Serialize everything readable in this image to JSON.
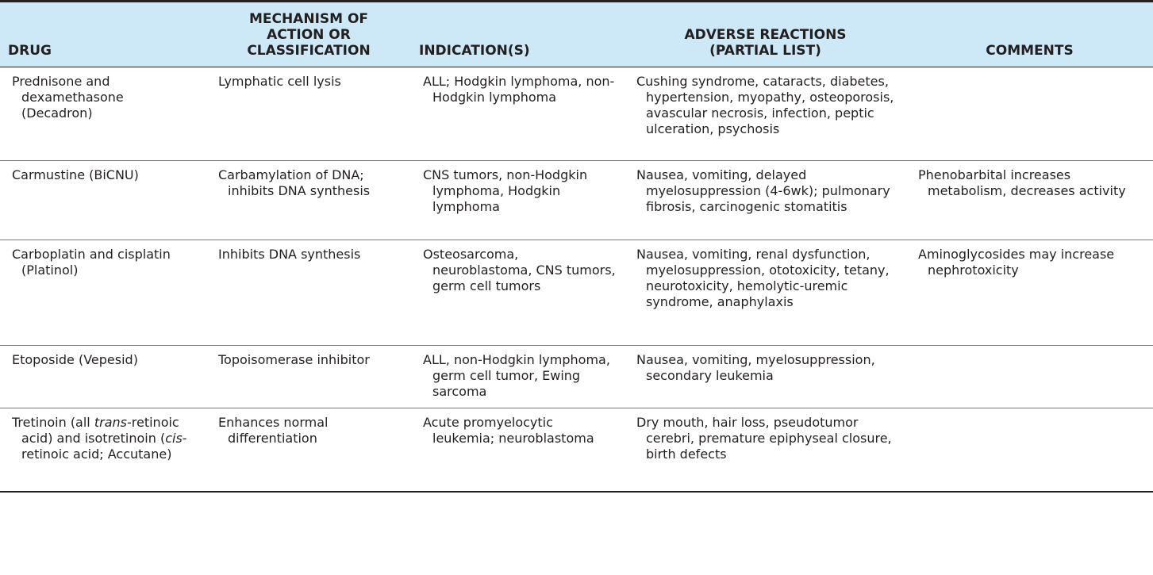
{
  "table": {
    "headers": {
      "drug": "DRUG",
      "mechanism_line1": "MECHANISM OF",
      "mechanism_line2": "ACTION OR",
      "mechanism_line3": "CLASSIFICATION",
      "indications": "INDICATION(S)",
      "adverse_line1": "ADVERSE REACTIONS",
      "adverse_line2": "(PARTIAL LIST)",
      "comments": "COMMENTS"
    },
    "rows": [
      {
        "drug": "Prednisone and dexamethasone (Decadron)",
        "mechanism": "Lymphatic cell lysis",
        "indications": "ALL; Hodgkin lymphoma, non-Hodgkin lymphoma",
        "adverse": "Cushing syndrome, cataracts, diabetes, hypertension, myopathy, osteoporosis, avascular necrosis, infection, peptic ulceration, psychosis",
        "comments": ""
      },
      {
        "drug": "Carmustine (BiCNU)",
        "mechanism": "Carbamylation of DNA; inhibits DNA synthesis",
        "indications": "CNS tumors, non-Hodgkin lymphoma, Hodgkin lymphoma",
        "adverse": "Nausea, vomiting, delayed myelosuppression (4-6wk); pulmonary fibrosis, carcinogenic stomatitis",
        "comments": "Phenobarbital increases metabolism, decreases activity"
      },
      {
        "drug": "Carboplatin and cisplatin (Platinol)",
        "mechanism": "Inhibits DNA synthesis",
        "indications": "Osteosarcoma, neuroblastoma, CNS tumors, germ cell tumors",
        "adverse": "Nausea, vomiting, renal dysfunction, myelosuppression, ototoxicity, tetany, neurotoxicity, hemolytic-uremic syndrome, anaphylaxis",
        "comments": "Aminoglycosides may increase nephrotoxicity"
      },
      {
        "drug": "Etoposide (Vepesid)",
        "mechanism": "Topoisomerase inhibitor",
        "indications": "ALL, non-Hodgkin lymphoma, germ cell tumor, Ewing sarcoma",
        "adverse": "Nausea, vomiting, myelosuppression, secondary leukemia",
        "comments": ""
      },
      {
        "drug_part1": "Tretinoin (all ",
        "drug_part2": "trans",
        "drug_part3": "-retinoic acid) and isotretinoin (",
        "drug_part4": "cis",
        "drug_part5": "-retinoic acid; Accutane)",
        "mechanism": "Enhances normal differentiation",
        "indications": "Acute promyelocytic leukemia; neuroblastoma",
        "adverse": "Dry mouth, hair loss, pseudotumor cerebri, premature epiphyseal closure, birth defects",
        "comments": ""
      }
    ]
  }
}
